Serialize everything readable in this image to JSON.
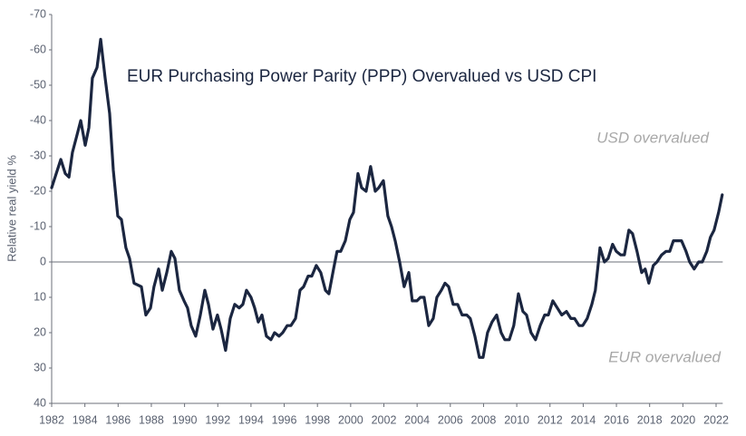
{
  "chart_data": {
    "type": "line",
    "title": "EUR Purchasing Power Parity (PPP) Overvalued vs USD CPI",
    "y_label": "Relative real yield %",
    "annotations": [
      "USD overvalued",
      "EUR overvalued"
    ],
    "xlim": [
      1982,
      2022.4
    ],
    "ylim": [
      40,
      -70
    ],
    "xticks": [
      1982,
      1984,
      1986,
      1988,
      1990,
      1992,
      1994,
      1996,
      1998,
      2000,
      2002,
      2004,
      2006,
      2008,
      2010,
      2012,
      2014,
      2016,
      2018,
      2020,
      2022
    ],
    "yticks": [
      -70,
      -60,
      -50,
      -40,
      -30,
      -20,
      -10,
      0,
      10,
      20,
      30,
      40
    ],
    "x": [
      1982.0,
      1982.55,
      1982.82,
      1983.04,
      1983.25,
      1983.53,
      1983.75,
      1984.02,
      1984.24,
      1984.45,
      1984.73,
      1984.95,
      1985.22,
      1985.49,
      1985.71,
      1985.98,
      1986.2,
      1986.47,
      1986.69,
      1986.96,
      1987.4,
      1987.67,
      1987.95,
      1988.16,
      1988.44,
      1988.66,
      1988.93,
      1989.2,
      1989.42,
      1989.69,
      1989.97,
      1990.18,
      1990.4,
      1990.67,
      1990.95,
      1991.22,
      1991.44,
      1991.71,
      1991.98,
      1992.2,
      1992.47,
      1992.75,
      1993.02,
      1993.29,
      1993.51,
      1993.73,
      1994.0,
      1994.22,
      1994.44,
      1994.66,
      1994.93,
      1995.2,
      1995.42,
      1995.69,
      1995.91,
      1996.18,
      1996.4,
      1996.68,
      1996.95,
      1997.17,
      1997.44,
      1997.66,
      1997.93,
      1998.2,
      1998.48,
      1998.69,
      1998.97,
      1999.18,
      1999.4,
      1999.68,
      1999.95,
      2000.17,
      2000.44,
      2000.66,
      2000.93,
      2001.2,
      2001.48,
      2001.69,
      2001.97,
      2002.24,
      2002.46,
      2002.68,
      2002.95,
      2003.22,
      2003.5,
      2003.71,
      2003.99,
      2004.2,
      2004.42,
      2004.7,
      2004.97,
      2005.19,
      2005.46,
      2005.68,
      2005.9,
      2006.17,
      2006.44,
      2006.71,
      2006.99,
      2007.2,
      2007.48,
      2007.75,
      2007.97,
      2008.24,
      2008.51,
      2008.79,
      2009.06,
      2009.28,
      2009.55,
      2009.82,
      2010.1,
      2010.37,
      2010.59,
      2010.86,
      2011.13,
      2011.41,
      2011.68,
      2011.9,
      2012.17,
      2012.44,
      2012.71,
      2012.99,
      2013.26,
      2013.48,
      2013.75,
      2013.97,
      2014.24,
      2014.52,
      2014.73,
      2015.01,
      2015.28,
      2015.5,
      2015.77,
      2015.99,
      2016.26,
      2016.48,
      2016.75,
      2016.97,
      2017.24,
      2017.52,
      2017.73,
      2017.95,
      2018.22,
      2018.44,
      2018.72,
      2018.99,
      2019.21,
      2019.43,
      2019.7,
      2019.92,
      2020.19,
      2020.41,
      2020.68,
      2020.95,
      2021.17,
      2021.44,
      2021.66,
      2021.88,
      2022.15,
      2022.37
    ],
    "series": [
      {
        "color": "#1b2640",
        "values": [
          -21,
          -29,
          -25,
          -24,
          -31,
          -36,
          -40,
          -33,
          -38,
          -52,
          -55,
          -63,
          -52,
          -42,
          -26,
          -13,
          -12,
          -4,
          -1,
          6,
          7,
          15,
          13,
          7,
          2,
          8,
          3,
          -3,
          -1,
          8,
          11,
          13,
          18,
          21,
          15,
          8,
          12,
          19,
          15,
          19,
          25,
          16,
          12,
          13,
          12,
          8,
          10,
          13,
          17,
          15,
          21,
          22,
          20,
          21,
          20,
          18,
          18,
          16,
          8,
          7,
          4,
          4,
          1,
          3,
          8,
          9,
          2,
          -3,
          -3,
          -6,
          -12,
          -14,
          -25,
          -21,
          -20,
          -27,
          -20,
          -21,
          -23,
          -13,
          -10,
          -6,
          0,
          7,
          3,
          11,
          11,
          10,
          10,
          18,
          16,
          10,
          8,
          6,
          7,
          12,
          12,
          15,
          15,
          16,
          21,
          27,
          27,
          20,
          17,
          15,
          20,
          22,
          22,
          18,
          9,
          14,
          15,
          20,
          22,
          18,
          15,
          15,
          11,
          13,
          15,
          14,
          16,
          16,
          18,
          18,
          16,
          12,
          8,
          -4,
          0,
          -1,
          -5,
          -3,
          -2,
          -2,
          -9,
          -8,
          -3,
          3,
          2,
          6,
          1,
          0,
          -2,
          -3,
          -3,
          -6,
          -6,
          -6,
          -3,
          0,
          2,
          0,
          0,
          -3,
          -7,
          -9,
          -14,
          -19
        ]
      }
    ]
  }
}
